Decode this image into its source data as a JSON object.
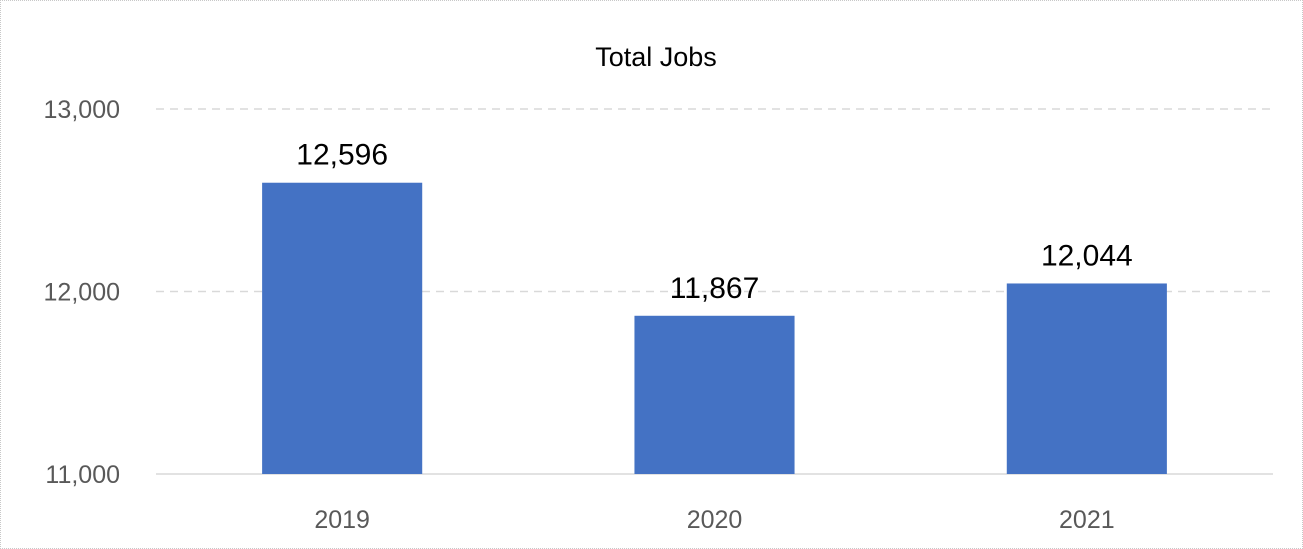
{
  "chart_data": {
    "type": "bar",
    "title": "Total Jobs",
    "categories": [
      "2019",
      "2020",
      "2021"
    ],
    "values": [
      12596,
      11867,
      12044
    ],
    "data_labels": [
      "12,596",
      "11,867",
      "12,044"
    ],
    "xlabel": "",
    "ylabel": "",
    "ylim": [
      11000,
      13000
    ],
    "y_ticks": [
      11000,
      12000,
      13000
    ],
    "y_tick_labels": [
      "11,000",
      "12,000",
      "13,000"
    ],
    "grid": true,
    "legend": "none",
    "bar_color": "#4472C4"
  }
}
